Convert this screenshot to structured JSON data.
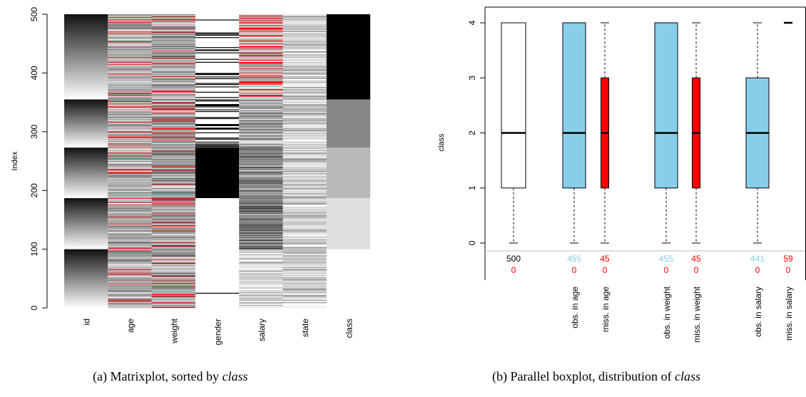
{
  "captions": {
    "a": {
      "label": "(a)",
      "text": "Matrixplot, sorted by",
      "var": "class"
    },
    "b": {
      "label": "(b)",
      "text": "Parallel boxplot, distribution of",
      "var": "class"
    }
  },
  "colors": {
    "missing": "#ff0000",
    "observed_box": "#87ceeb",
    "missing_box": "#ff0000",
    "all_box": "#ffffff",
    "count_all": "#000000",
    "count_observed": "#87ceeb",
    "count_missing": "#ff0000"
  },
  "chart_data": [
    {
      "type": "heatmap",
      "title": "",
      "xlabel": "",
      "ylabel": "Index",
      "ylim": [
        0,
        500
      ],
      "yticks": [
        0,
        100,
        200,
        300,
        400,
        500
      ],
      "columns": [
        "id",
        "age",
        "weight",
        "gender",
        "salary",
        "state",
        "class"
      ],
      "sort_by": "class",
      "n_rows": 500,
      "class_group_boundaries": [
        0,
        100,
        187,
        273,
        355,
        500
      ],
      "class_group_values": [
        0,
        1,
        2,
        3,
        4
      ],
      "gender_group_boundaries": [
        0,
        187,
        273,
        500
      ]
    },
    {
      "type": "box",
      "title": "",
      "xlabel": "",
      "ylabel": "class",
      "ylim": [
        0,
        4
      ],
      "yticks": [
        0,
        1,
        2,
        3,
        4
      ],
      "boxes": [
        {
          "label": "",
          "group": "all",
          "min": 0,
          "q1": 1,
          "median": 2,
          "q3": 4,
          "max": 4,
          "n_top": "500",
          "n_bottom": "0"
        },
        {
          "label": "obs. in age",
          "group": "observed",
          "min": 0,
          "q1": 1,
          "median": 2,
          "q3": 4,
          "max": 4,
          "n_top": "455",
          "n_bottom": "0"
        },
        {
          "label": "miss. in age",
          "group": "missing",
          "min": 0,
          "q1": 1,
          "median": 2,
          "q3": 3,
          "max": 4,
          "n_top": "45",
          "n_bottom": "0"
        },
        {
          "label": "obs. in weight",
          "group": "observed",
          "min": 0,
          "q1": 1,
          "median": 2,
          "q3": 4,
          "max": 4,
          "n_top": "455",
          "n_bottom": "0"
        },
        {
          "label": "miss. in weight",
          "group": "missing",
          "min": 0,
          "q1": 1,
          "median": 2,
          "q3": 3,
          "max": 4,
          "n_top": "45",
          "n_bottom": "0"
        },
        {
          "label": "obs. in salary",
          "group": "observed",
          "min": 0,
          "q1": 1,
          "median": 2,
          "q3": 3,
          "max": 4,
          "n_top": "441",
          "n_bottom": "0"
        },
        {
          "label": "miss. in salary",
          "group": "missing",
          "min": 4,
          "q1": 4,
          "median": 4,
          "q3": 4,
          "max": 4,
          "n_top": "59",
          "n_bottom": "0"
        }
      ]
    }
  ]
}
